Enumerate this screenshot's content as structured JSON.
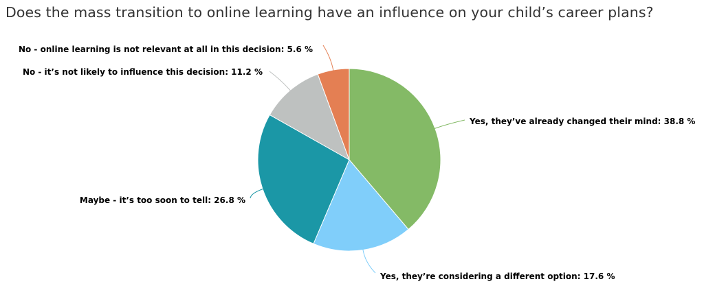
{
  "chart_data": {
    "type": "pie",
    "title": "Does the mass transition to online learning have an influence on your child’s career plans?",
    "unit": "%",
    "start": "top, clockwise",
    "slices": [
      {
        "label": "Yes, they’ve already changed their mind: 38.8 %",
        "category": "Yes, they’ve already changed their mind",
        "value": 38.8,
        "color": "#84BA66"
      },
      {
        "label": "Yes, they’re considering a different option: 17.6 %",
        "category": "Yes, they’re considering a different option",
        "value": 17.6,
        "color": "#80CEFA"
      },
      {
        "label": "Maybe - it’s too soon to tell: 26.8 %",
        "category": "Maybe - it’s too soon to tell",
        "value": 26.8,
        "color": "#1B97A6"
      },
      {
        "label": "No - it’s not likely to influence this decision: 11.2 %",
        "category": "No - it’s not likely to influence this decision",
        "value": 11.2,
        "color": "#BEC1C0"
      },
      {
        "label": "No - online learning is not relevant at all in this decision: 5.6 %",
        "category": "No - online learning is not relevant at all in this decision",
        "value": 5.6,
        "color": "#E47F53"
      }
    ]
  }
}
